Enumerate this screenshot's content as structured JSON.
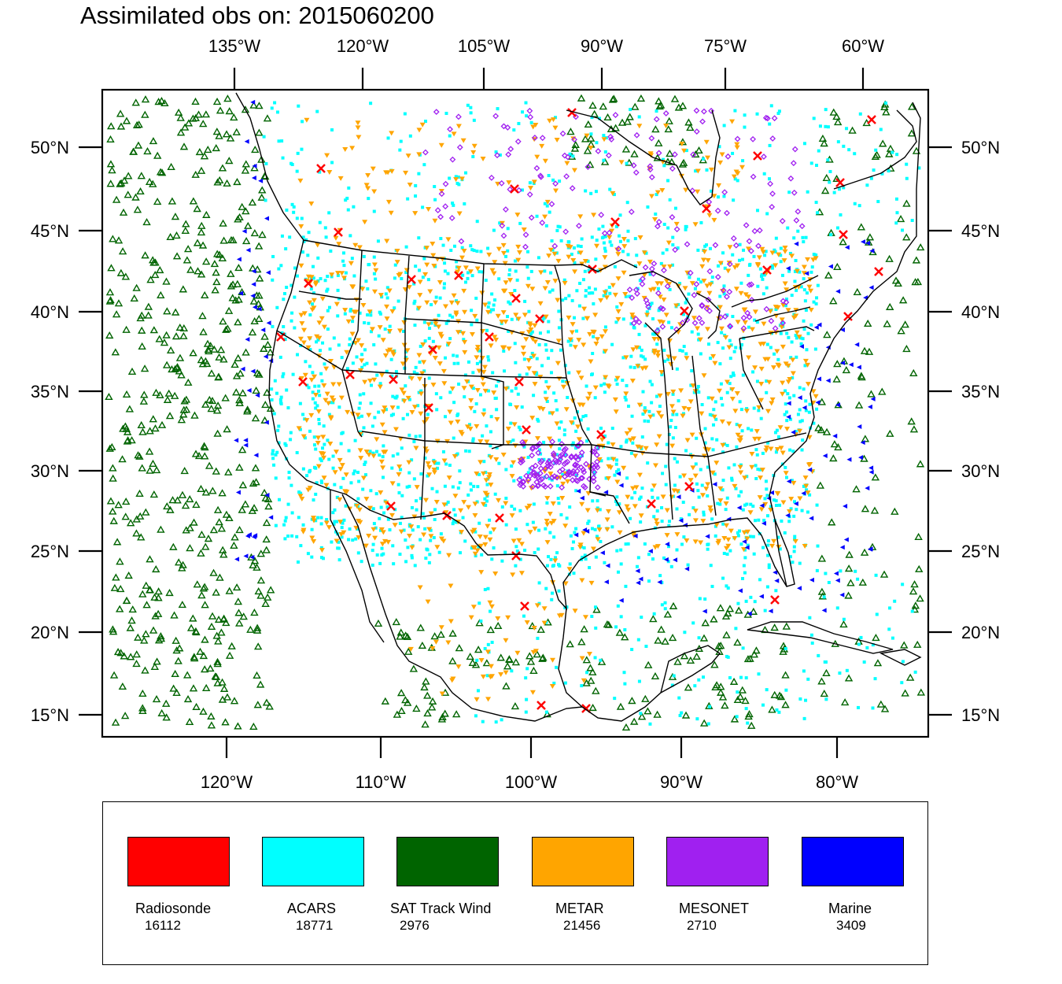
{
  "title": "Assimilated obs on: 2015060200",
  "map": {
    "top_lon_labels": [
      "135°W",
      "120°W",
      "105°W",
      "90°W",
      "75°W",
      "60°W"
    ],
    "bottom_lon_labels": [
      "120°W",
      "110°W",
      "100°W",
      "90°W",
      "80°W"
    ],
    "lat_labels": [
      "50°N",
      "45°N",
      "40°N",
      "35°N",
      "30°N",
      "25°N",
      "20°N",
      "15°N"
    ],
    "lat_range": [
      14,
      54
    ],
    "lon_range": [
      -128,
      -74
    ]
  },
  "legend": [
    {
      "label": "Radiosonde",
      "count": "16112",
      "color": "#ff0000",
      "symbol": "cross"
    },
    {
      "label": "ACARS",
      "count": "18771",
      "color": "#00ffff",
      "symbol": "square-dot"
    },
    {
      "label": "SAT Track Wind",
      "count": "2976",
      "color": "#006400",
      "symbol": "triangle-up"
    },
    {
      "label": "METAR",
      "count": "21456",
      "color": "#ffa500",
      "symbol": "triangle-down"
    },
    {
      "label": "MESONET",
      "count": "2710",
      "color": "#a020f0",
      "symbol": "diamond"
    },
    {
      "label": "Marine",
      "count": "3409",
      "color": "#0000ff",
      "symbol": "triangle-left"
    }
  ]
}
